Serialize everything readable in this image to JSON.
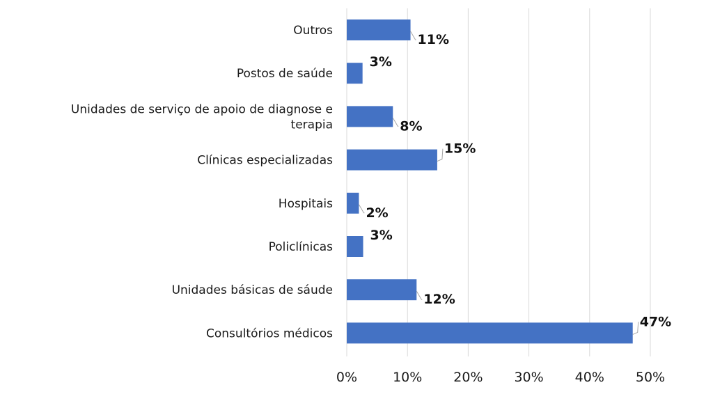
{
  "chart_data": {
    "type": "bar",
    "orientation": "horizontal",
    "categories": [
      "Outros",
      "Postos de saúde",
      [
        "Unidades de serviço de apoio de diagnose e",
        "terapia"
      ],
      "Clínicas especializadas",
      "Hospitais",
      "Policlínicas",
      "Unidades básicas de sáude",
      "Consultórios médicos"
    ],
    "values": [
      10.5,
      2.6,
      7.6,
      14.9,
      2.0,
      2.7,
      11.5,
      47.1
    ],
    "data_labels": [
      "11%",
      "3%",
      "8%",
      "15%",
      "2%",
      "3%",
      "12%",
      "47%"
    ],
    "xticks": [
      "0%",
      "10%",
      "20%",
      "30%",
      "40%",
      "50%"
    ],
    "xlim": [
      0,
      50
    ],
    "grid": true,
    "bar_color": "#4472c4"
  }
}
